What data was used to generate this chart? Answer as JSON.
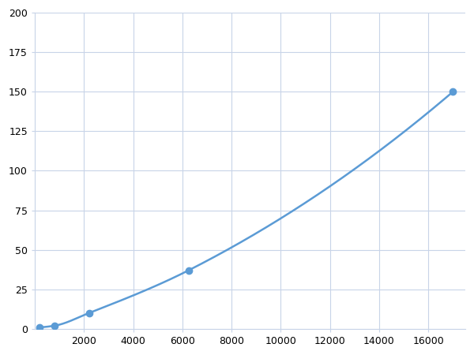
{
  "x_data": [
    200,
    800,
    2200,
    6250,
    17000
  ],
  "y_data": [
    1,
    2,
    10,
    37,
    150
  ],
  "line_color": "#5b9bd5",
  "marker_color": "#5b9bd5",
  "marker_size": 6,
  "line_width": 1.8,
  "xlim": [
    0,
    17500
  ],
  "ylim": [
    0,
    200
  ],
  "xticks": [
    2000,
    4000,
    6000,
    8000,
    10000,
    12000,
    14000,
    16000
  ],
  "yticks": [
    0,
    25,
    50,
    75,
    100,
    125,
    150,
    175,
    200
  ],
  "grid_color": "#c8d4e8",
  "bg_color": "#ffffff",
  "fig_bg_color": "#ffffff",
  "tick_labelsize": 9
}
